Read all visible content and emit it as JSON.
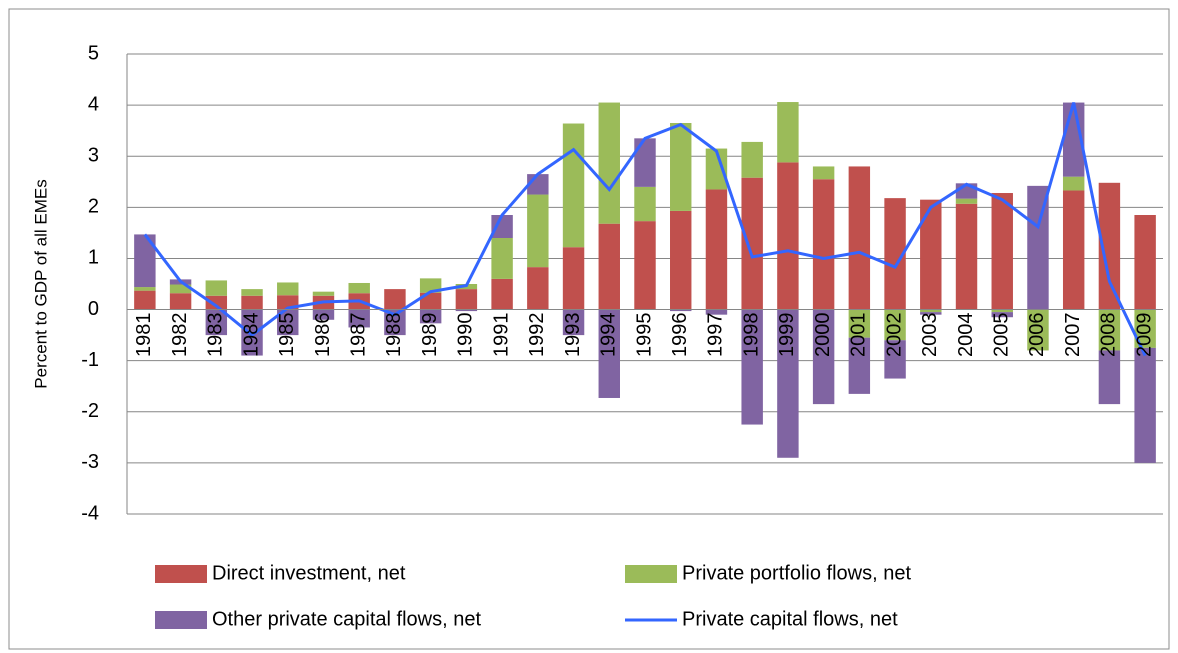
{
  "chart_data": {
    "type": "bar",
    "stacked": true,
    "y_label": "Percent to GDP of all EMEs",
    "categories": [
      "1981",
      "1982",
      "1983",
      "1984",
      "1985",
      "1986",
      "1987",
      "1988",
      "1989",
      "1990",
      "1991",
      "1992",
      "1993",
      "1994",
      "1995",
      "1996",
      "1997",
      "1998",
      "1999",
      "2000",
      "2001",
      "2002",
      "2003",
      "2004",
      "2005",
      "2006",
      "2007",
      "2008",
      "2009"
    ],
    "series": [
      {
        "name": "Direct investment, net",
        "type": "bar",
        "color": "#c0504d",
        "values": [
          0.37,
          0.32,
          0.27,
          0.27,
          0.28,
          0.27,
          0.32,
          0.4,
          0.33,
          0.4,
          0.6,
          0.83,
          1.22,
          1.68,
          1.73,
          1.93,
          2.35,
          2.58,
          2.88,
          2.55,
          2.8,
          2.18,
          2.15,
          2.07,
          2.28,
          0,
          2.33,
          2.48,
          1.85
        ]
      },
      {
        "name": "Private portfolio flows, net",
        "type": "bar",
        "color": "#9bbb59",
        "values": [
          0.07,
          0.17,
          0.3,
          0.13,
          0.25,
          0.08,
          0.2,
          0,
          0.28,
          0.1,
          0.8,
          1.42,
          2.42,
          2.37,
          0.67,
          1.72,
          0.8,
          0.7,
          1.18,
          0.25,
          -0.55,
          -0.6,
          -0.05,
          0.1,
          -0.05,
          -0.8,
          0.27,
          -0.8,
          -0.75
        ]
      },
      {
        "name": "Other private capital flows, net",
        "type": "bar",
        "color": "#8064a2",
        "values": [
          1.03,
          0.1,
          -0.5,
          -0.9,
          -0.5,
          -0.2,
          -0.35,
          -0.5,
          -0.27,
          -0.03,
          0.45,
          0.4,
          -0.5,
          -1.73,
          0.95,
          -0.03,
          -0.1,
          -2.25,
          -2.9,
          -1.85,
          -1.1,
          -0.75,
          -0.05,
          0.3,
          -0.1,
          2.42,
          1.45,
          -1.05,
          -2.25
        ]
      },
      {
        "name": "Private capital flows, net",
        "type": "line",
        "color": "#3366ff",
        "values": [
          1.47,
          0.55,
          0.07,
          -0.5,
          0.03,
          0.15,
          0.17,
          -0.1,
          0.35,
          0.47,
          1.85,
          2.65,
          3.13,
          2.35,
          3.35,
          3.62,
          3.1,
          1.03,
          1.15,
          1.0,
          1.12,
          0.83,
          2.0,
          2.45,
          2.15,
          1.62,
          4.05,
          0.55,
          -0.9
        ]
      }
    ],
    "ylim": [
      -4,
      5
    ],
    "yticks": [
      -4,
      -3,
      -2,
      -1,
      0,
      1,
      2,
      3,
      4,
      5
    ],
    "grid": true,
    "legend": "bottom"
  }
}
